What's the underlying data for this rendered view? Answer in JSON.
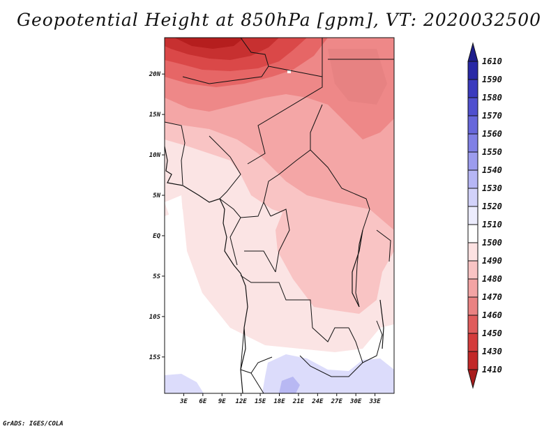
{
  "title": "Geopotential Height at 850hPa [gpm], VT: 2020032500",
  "footer": "GrADS: IGES/COLA",
  "map": {
    "lat_range": [
      -19.5,
      24.5
    ],
    "lon_range": [
      0,
      36
    ],
    "lat_labels": [
      "20N",
      "15N",
      "10N",
      "5N",
      "EQ",
      "5S",
      "10S",
      "15S"
    ],
    "lat_values": [
      20,
      15,
      10,
      5,
      0,
      -5,
      -10,
      -15
    ],
    "lon_labels": [
      "3E",
      "6E",
      "9E",
      "12E",
      "15E",
      "18E",
      "21E",
      "24E",
      "27E",
      "30E",
      "33E"
    ],
    "lon_values": [
      3,
      6,
      9,
      12,
      15,
      18,
      21,
      24,
      27,
      30,
      33
    ]
  },
  "colorbar": {
    "labels": [
      "1610",
      "1590",
      "1580",
      "1570",
      "1560",
      "1550",
      "1540",
      "1530",
      "1520",
      "1510",
      "1500",
      "1490",
      "1480",
      "1470",
      "1460",
      "1450",
      "1430",
      "1410"
    ],
    "colors": [
      "#1e1e8c",
      "#2828a6",
      "#3a3abe",
      "#5050cf",
      "#6767db",
      "#8080e5",
      "#9c9cee",
      "#b6b6f5",
      "#d2d2fa",
      "#ececfd",
      "#ffffff",
      "#fde2e2",
      "#f9c4c4",
      "#f3a4a4",
      "#ea8282",
      "#e05c5c",
      "#d43c3c",
      "#c22828",
      "#a81c1c"
    ]
  },
  "colors": {
    "c1410": "#b51e1e",
    "c1430": "#c73030",
    "c1450": "#da4848",
    "c1460": "#e66666",
    "c1470": "#ee8888",
    "c1480": "#f4a6a6",
    "c1490": "#f9c4c4",
    "c1500": "#fde0e0",
    "c1510": "#ffffff",
    "c1520": "#dcdcfb",
    "c1530": "#b8b8f3"
  }
}
